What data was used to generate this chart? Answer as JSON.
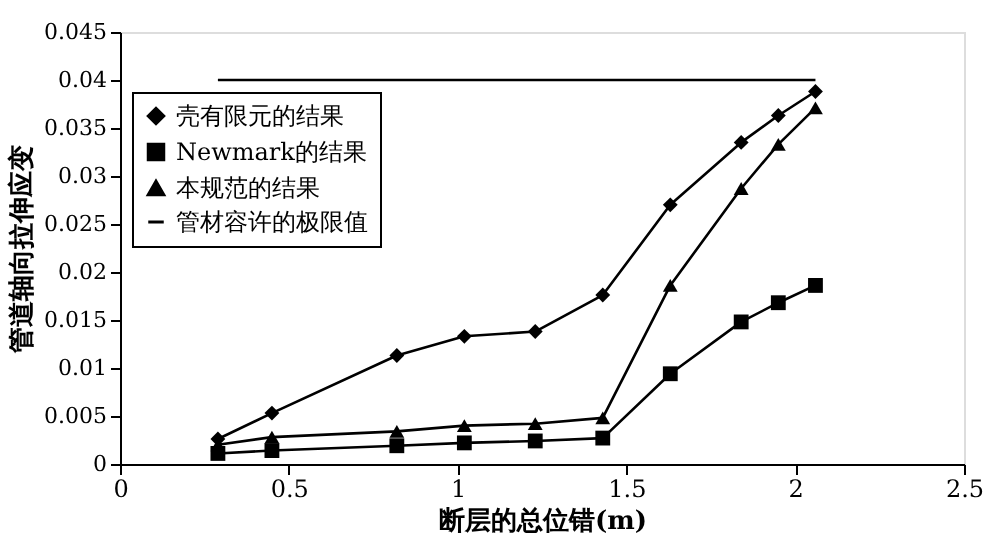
{
  "chart_data": {
    "type": "line",
    "xlabel": "断层的总位错(m)",
    "ylabel": "管道轴向拉伸应变",
    "series": [
      {
        "name": "壳有限元的结果",
        "color": "#000000",
        "marker": "diamond",
        "x": [
          0.29,
          0.45,
          0.82,
          1.02,
          1.23,
          1.43,
          1.63,
          1.84,
          1.95,
          2.06
        ],
        "values": [
          0.0026,
          0.0053,
          0.0113,
          0.0133,
          0.0138,
          0.0176,
          0.027,
          0.0335,
          0.0363,
          0.0388
        ]
      },
      {
        "name": "Newmark的结果",
        "color": "#000000",
        "marker": "square",
        "x": [
          0.29,
          0.45,
          0.82,
          1.02,
          1.23,
          1.43,
          1.63,
          1.84,
          1.95,
          2.06
        ],
        "values": [
          0.0011,
          0.0014,
          0.0019,
          0.0022,
          0.0024,
          0.0027,
          0.0094,
          0.0148,
          0.0168,
          0.0186
        ]
      },
      {
        "name": "本规范的结果",
        "color": "#000000",
        "marker": "triangle",
        "x": [
          0.29,
          0.45,
          0.82,
          1.02,
          1.23,
          1.43,
          1.63,
          1.84,
          1.95,
          2.06
        ],
        "values": [
          0.002,
          0.0028,
          0.0034,
          0.004,
          0.0042,
          0.0048,
          0.0186,
          0.0287,
          0.0333,
          0.0371
        ]
      },
      {
        "name": "管材容许的极限值",
        "color": "#000000",
        "marker": "none",
        "x": [
          0.29,
          2.06
        ],
        "values": [
          0.04,
          0.04
        ]
      }
    ],
    "xlim": [
      0,
      2.5
    ],
    "xticks": [
      0,
      0.5,
      1,
      1.5,
      2,
      2.5
    ],
    "ylim": [
      0,
      0.045
    ],
    "yticks": [
      0,
      0.005,
      0.01,
      0.015,
      0.02,
      0.025,
      0.03,
      0.035,
      0.04,
      0.045
    ],
    "grid": false,
    "legend": "top left",
    "line_style": "solid"
  }
}
